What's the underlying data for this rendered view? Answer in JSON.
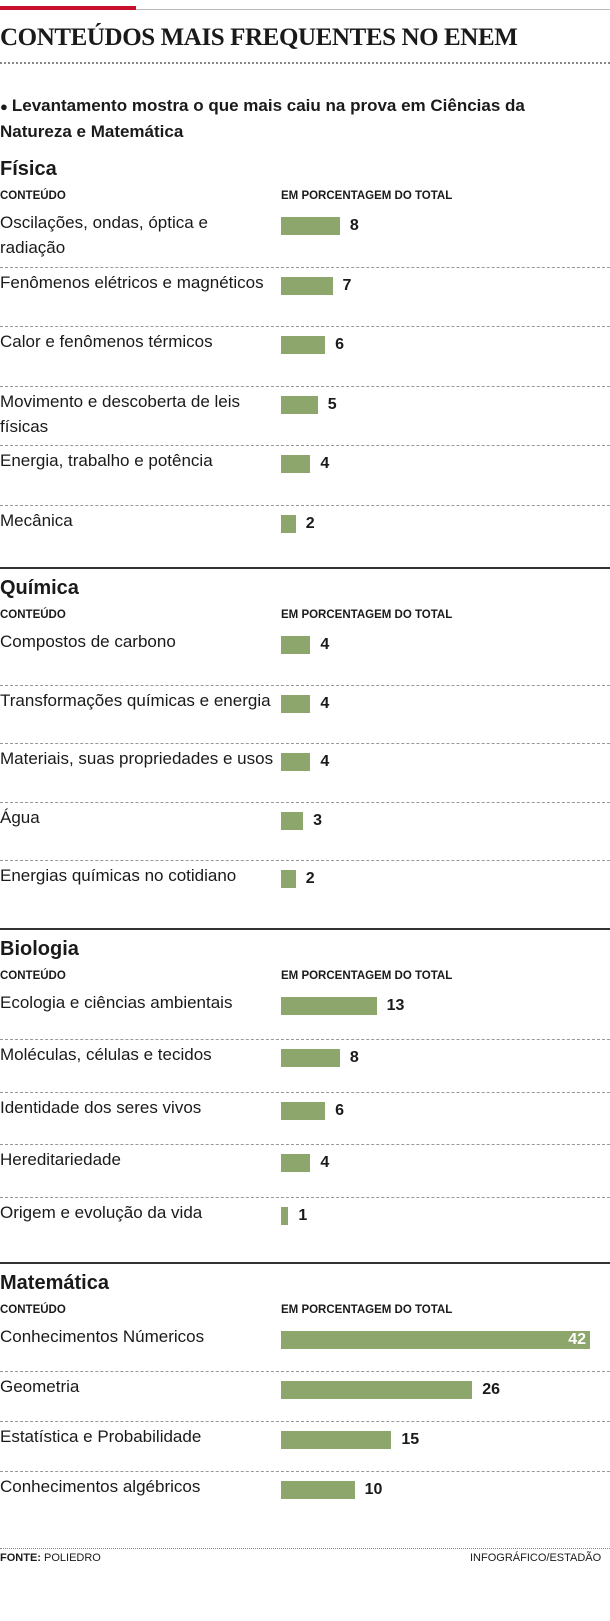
{
  "title": "CONTEÚDOS MAIS FREQUENTES NO ENEM",
  "subtitle": "Levantamento mostra o que mais caiu na prova em Ciências da Natureza e Matemática",
  "chart_data": [
    {
      "type": "bar",
      "title": "Física",
      "label_header": "CONTEÚDO",
      "value_header": "EM PORCENTAGEM DO TOTAL",
      "color": "#8ca66b",
      "categories": [
        "Oscilações, ondas, óptica e radiação",
        "Fenômenos elétricos e magnéticos",
        "Calor e fenômenos térmicos",
        "Movimento e descoberta de leis físicas",
        "Energia, trabalho e potência",
        "Mecânica"
      ],
      "values": [
        8,
        7,
        6,
        5,
        4,
        2
      ]
    },
    {
      "type": "bar",
      "title": "Química",
      "label_header": "CONTEÚDO",
      "value_header": "EM PORCENTAGEM DO TOTAL",
      "color": "#8ca66b",
      "categories": [
        "Compostos de carbono",
        "Transformações químicas e energia",
        "Materiais, suas propriedades e usos",
        "Água",
        "Energias químicas no cotidiano"
      ],
      "values": [
        4,
        4,
        4,
        3,
        2
      ]
    },
    {
      "type": "bar",
      "title": "Biologia",
      "label_header": "CONTEÚDO",
      "value_header": "EM PORCENTAGEM DO TOTAL",
      "color": "#8ca66b",
      "categories": [
        "Ecologia e ciências ambientais",
        "Moléculas, células e tecidos",
        "Identidade dos seres vivos",
        "Hereditariedade",
        "Origem e evolução da vida"
      ],
      "values": [
        13,
        8,
        6,
        4,
        1
      ]
    },
    {
      "type": "bar",
      "title": "Matemática",
      "label_header": "CONTEÚDO",
      "value_header": "EM PORCENTAGEM DO TOTAL",
      "color": "#8ca66b",
      "categories": [
        "Conhecimentos Númericos",
        "Geometria",
        "Estatística e Probabilidade",
        "Conhecimentos algébricos"
      ],
      "values": [
        42,
        26,
        15,
        10
      ]
    }
  ],
  "source_label": "FONTE:",
  "source": "POLIEDRO",
  "credit": "INFOGRÁFICO/ESTADÃO"
}
